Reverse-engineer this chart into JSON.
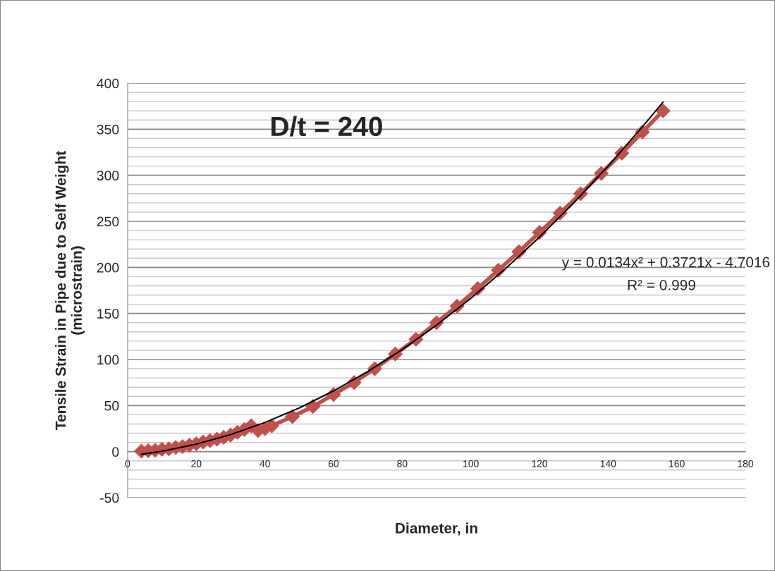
{
  "chart_data": {
    "type": "line",
    "xlabel": "Diameter, in",
    "ylabel": "Tensile Strain in Pipe due to Self Weight\n(microstrain)",
    "xlim": [
      0,
      180
    ],
    "xticks": [
      0,
      20,
      40,
      60,
      80,
      100,
      120,
      140,
      160,
      180
    ],
    "ylim": [
      -50,
      400
    ],
    "yticks": [
      -50,
      0,
      50,
      100,
      150,
      200,
      250,
      300,
      350,
      400
    ],
    "grid": "y",
    "legend": false,
    "annotations": [
      "D/t = 240",
      "y = 0.0134x² + 0.3721x - 4.7016",
      "R² = 0.999"
    ],
    "series": [
      {
        "color": "#c0504d",
        "marker": "diamond",
        "line_style": "solid",
        "x": [
          4,
          6,
          8,
          10,
          12,
          14,
          16,
          18,
          20,
          22,
          24,
          26,
          28,
          30,
          32,
          34,
          36,
          38,
          40,
          42,
          48,
          54,
          60,
          66,
          72,
          78,
          84,
          90,
          96,
          102,
          108,
          114,
          120,
          126,
          132,
          138,
          144,
          150,
          156
        ],
        "values": [
          0.5,
          1,
          1.5,
          2.5,
          3,
          4.5,
          5.5,
          7,
          8.5,
          10.5,
          12,
          13.5,
          15.5,
          18,
          21,
          24,
          28,
          23,
          25,
          28,
          38,
          49,
          62,
          75,
          90,
          106,
          122,
          140,
          158,
          177,
          197,
          217,
          238,
          259,
          280,
          302,
          324,
          347,
          370
        ]
      },
      {
        "color": "#000000",
        "marker": "none",
        "line_style": "solid",
        "x": [
          4,
          10,
          20,
          30,
          40,
          50,
          60,
          70,
          80,
          90,
          100,
          110,
          120,
          130,
          140,
          150,
          156
        ],
        "values": [
          -3.0,
          0.4,
          8.1,
          18.5,
          31.6,
          47.4,
          65.9,
          87.0,
          110.8,
          137.3,
          166.5,
          198.4,
          232.9,
          270.1,
          310.0,
          352.6,
          379.4
        ]
      }
    ]
  }
}
